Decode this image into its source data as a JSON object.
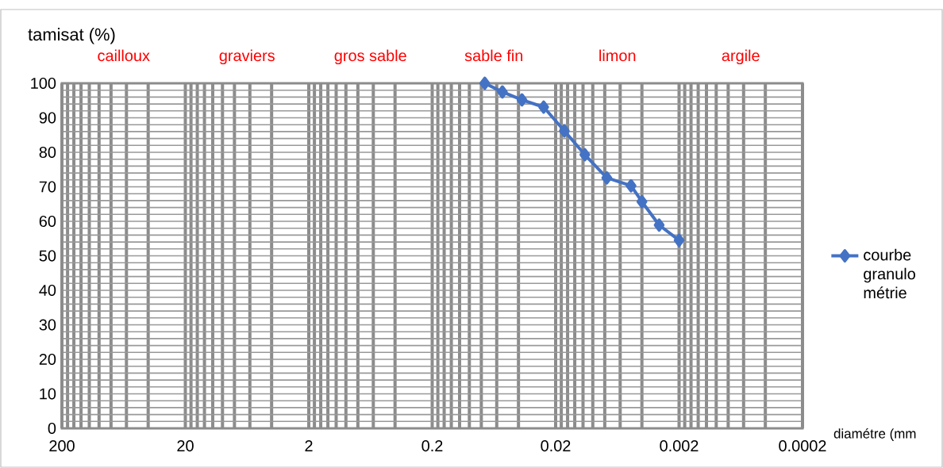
{
  "chart_data": {
    "type": "line",
    "ylabel": "tamisat (%)",
    "xlabel": "diamétre (mm",
    "annotations": [
      "cailloux",
      "graviers",
      "gros sable",
      "sable fin",
      "limon",
      "argile"
    ],
    "x": [
      0.075,
      0.054,
      0.0375,
      0.025,
      0.017,
      0.0116,
      0.0077,
      0.0049,
      0.004,
      0.0029,
      0.002
    ],
    "series": [
      {
        "name": "courbe granulo métrie",
        "color": "#4472c4",
        "values": [
          100,
          97.5,
          95.2,
          93.1,
          86.2,
          79.3,
          72.6,
          70.3,
          65.7,
          58.9,
          54.5
        ]
      }
    ],
    "xlim": [
      200,
      0.0002
    ],
    "xticks": [
      200,
      20,
      2,
      0.2,
      0.02,
      0.002,
      0.0002
    ],
    "ylim": [
      0,
      100
    ],
    "yticks": [
      0,
      10,
      20,
      30,
      40,
      50,
      60,
      70,
      80,
      90,
      100
    ],
    "log": "x",
    "grid": true,
    "legend": "right",
    "marker": "diamond",
    "line_style": "solid"
  }
}
